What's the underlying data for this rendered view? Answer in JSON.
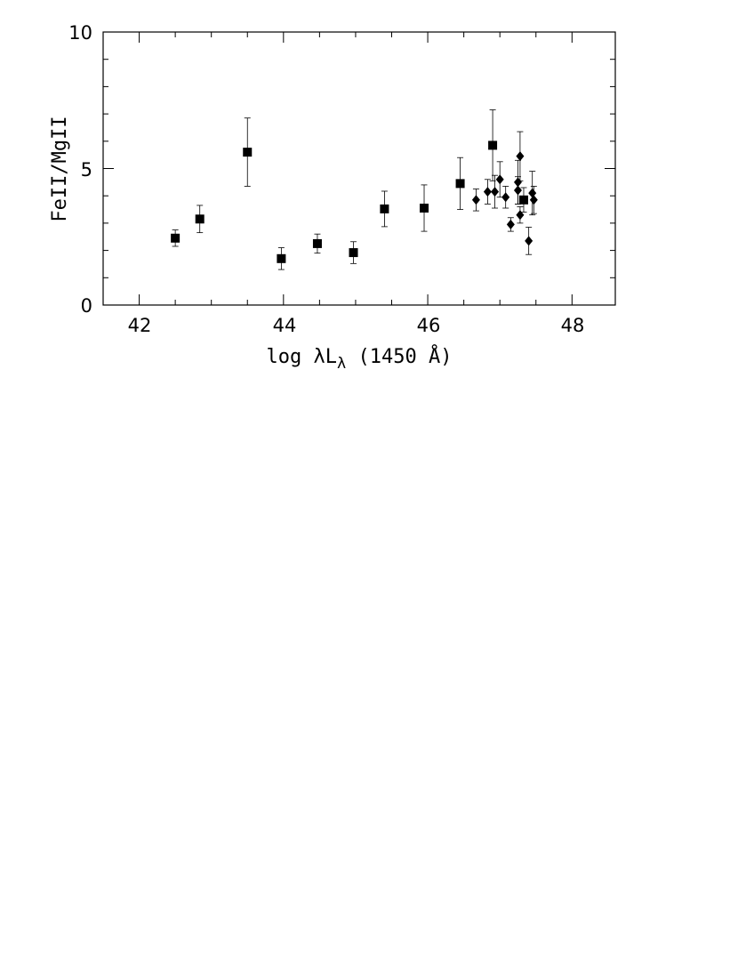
{
  "chart_data": {
    "type": "scatter",
    "title": "",
    "xlabel": "log λL",
    "xlabel_subscript": "λ",
    "xlabel_suffix": " (1450 Å)",
    "ylabel": "FeII/MgII",
    "xlim": [
      41.5,
      48.6
    ],
    "ylim": [
      0,
      10
    ],
    "x_ticks": [
      "42",
      "44",
      "46",
      "48"
    ],
    "y_ticks": [
      "0",
      "5",
      "10"
    ],
    "grid": false,
    "legend": "none",
    "series": [
      {
        "marker": "square",
        "points": [
          {
            "x": 42.5,
            "y": 2.45,
            "err_lo": 0.3,
            "err_hi": 0.3
          },
          {
            "x": 42.84,
            "y": 3.15,
            "err_lo": 0.5,
            "err_hi": 0.5
          },
          {
            "x": 43.5,
            "y": 5.6,
            "err_lo": 1.25,
            "err_hi": 1.25
          },
          {
            "x": 43.97,
            "y": 1.7,
            "err_lo": 0.4,
            "err_hi": 0.4
          },
          {
            "x": 44.47,
            "y": 2.25,
            "err_lo": 0.35,
            "err_hi": 0.35
          },
          {
            "x": 44.97,
            "y": 1.92,
            "err_lo": 0.4,
            "err_hi": 0.4
          },
          {
            "x": 45.4,
            "y": 3.52,
            "err_lo": 0.65,
            "err_hi": 0.65
          },
          {
            "x": 45.95,
            "y": 3.55,
            "err_lo": 0.85,
            "err_hi": 0.85
          },
          {
            "x": 46.45,
            "y": 4.45,
            "err_lo": 0.95,
            "err_hi": 0.95
          },
          {
            "x": 46.9,
            "y": 5.85,
            "err_lo": 1.3,
            "err_hi": 1.3
          },
          {
            "x": 47.33,
            "y": 3.85,
            "err_lo": 0.45,
            "err_hi": 0.45
          }
        ]
      },
      {
        "marker": "diamond",
        "points": [
          {
            "x": 46.67,
            "y": 3.85,
            "err_lo": 0.4,
            "err_hi": 0.4
          },
          {
            "x": 46.83,
            "y": 4.15,
            "err_lo": 0.45,
            "err_hi": 0.45
          },
          {
            "x": 46.93,
            "y": 4.15,
            "err_lo": 0.6,
            "err_hi": 0.6
          },
          {
            "x": 47.0,
            "y": 4.6,
            "err_lo": 0.65,
            "err_hi": 0.65
          },
          {
            "x": 47.08,
            "y": 3.95,
            "err_lo": 0.4,
            "err_hi": 0.4
          },
          {
            "x": 47.15,
            "y": 2.95,
            "err_lo": 0.25,
            "err_hi": 0.25
          },
          {
            "x": 47.25,
            "y": 4.5,
            "err_lo": 0.8,
            "err_hi": 0.8
          },
          {
            "x": 47.25,
            "y": 4.2,
            "err_lo": 0.5,
            "err_hi": 0.5
          },
          {
            "x": 47.28,
            "y": 5.45,
            "err_lo": 0.9,
            "err_hi": 0.9
          },
          {
            "x": 47.28,
            "y": 3.3,
            "err_lo": 0.3,
            "err_hi": 0.3
          },
          {
            "x": 47.4,
            "y": 2.35,
            "err_lo": 0.5,
            "err_hi": 0.5
          },
          {
            "x": 47.45,
            "y": 4.1,
            "err_lo": 0.8,
            "err_hi": 0.8
          },
          {
            "x": 47.47,
            "y": 3.85,
            "err_lo": 0.5,
            "err_hi": 0.5
          }
        ]
      }
    ]
  }
}
